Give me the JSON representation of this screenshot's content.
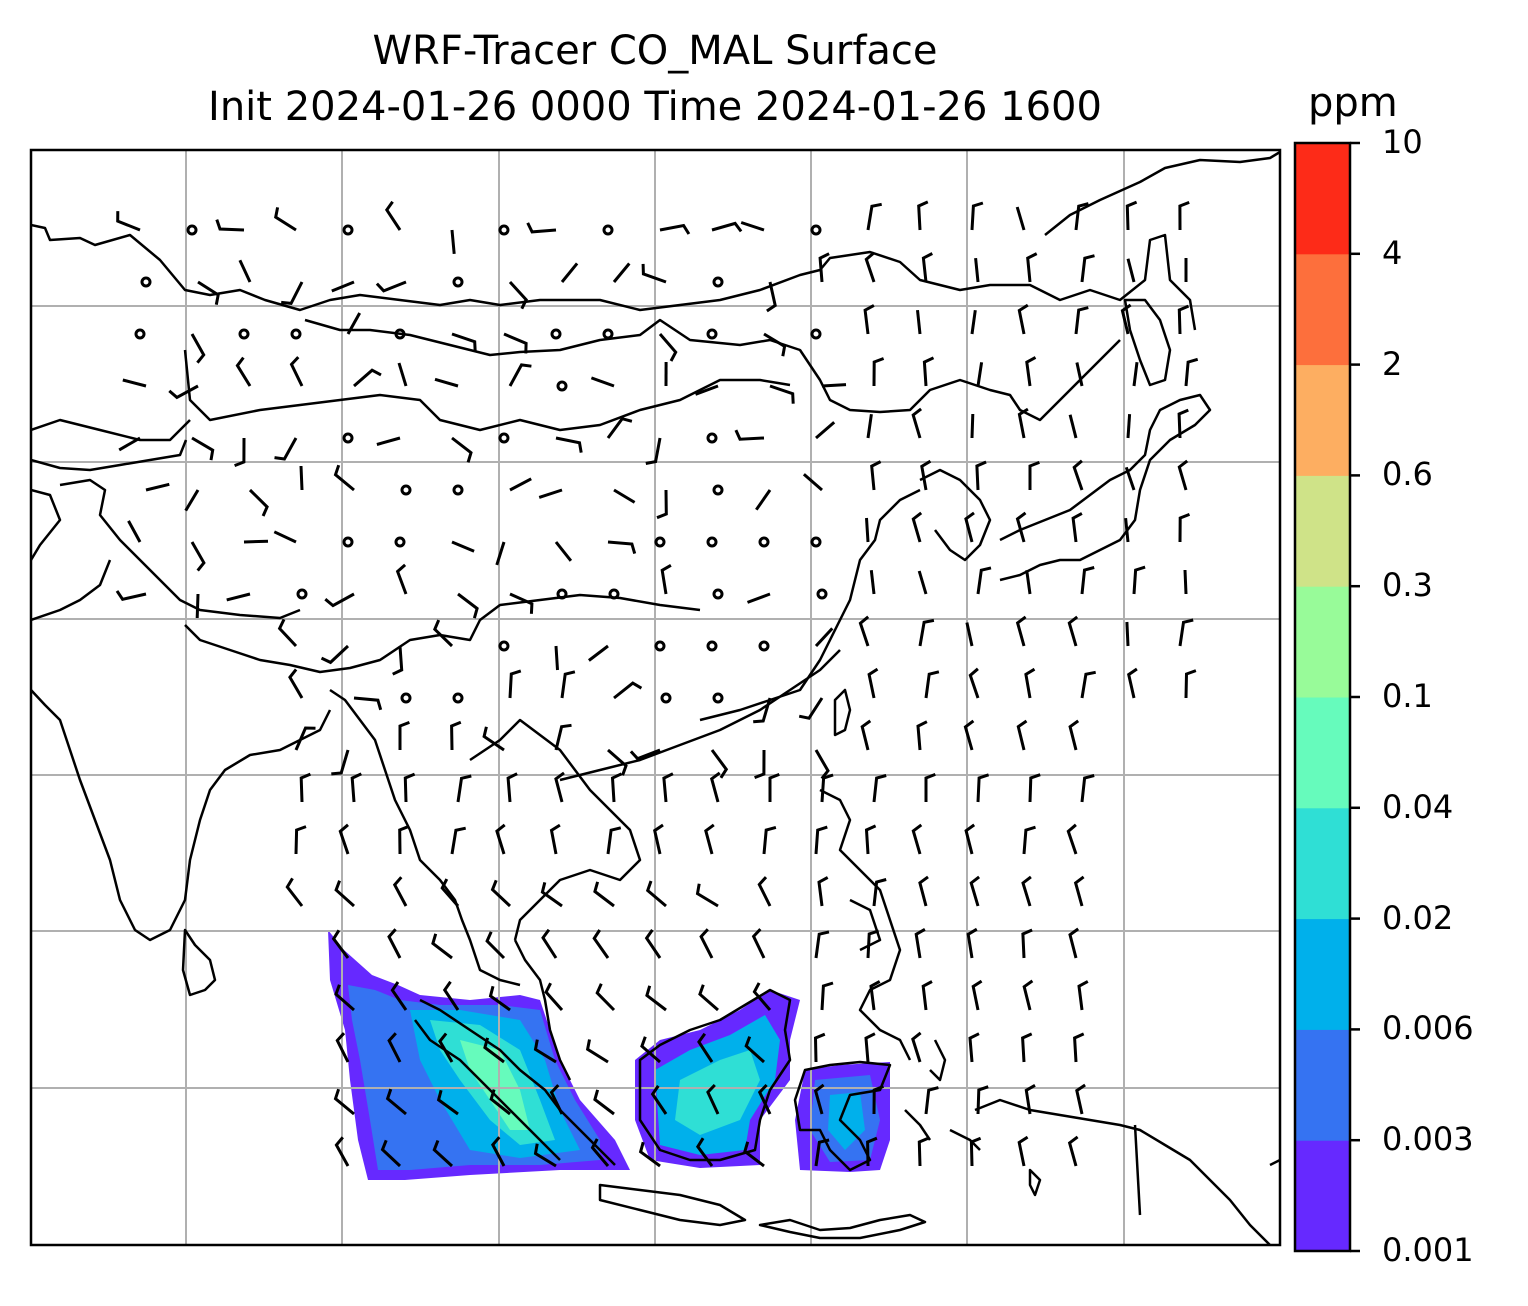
{
  "title_line1": "WRF-Tracer CO_MAL Surface",
  "title_line2": "Init 2024-01-26 0000 Time 2024-01-26 1600",
  "colorbar": {
    "unit": "ppm",
    "levels": [
      "0.001",
      "0.003",
      "0.006",
      "0.02",
      "0.04",
      "0.1",
      "0.3",
      "0.6",
      "2",
      "4",
      "10"
    ],
    "colors": [
      "#6629ff",
      "#3573f2",
      "#00b0eb",
      "#2fdfd5",
      "#66fbbc",
      "#98fb99",
      "#cfe388",
      "#fdae61",
      "#fd6f3c",
      "#fd2b18"
    ]
  },
  "map": {
    "gridlines": true,
    "coastline_color": "#000000",
    "grid_color": "#b0b0b0"
  }
}
